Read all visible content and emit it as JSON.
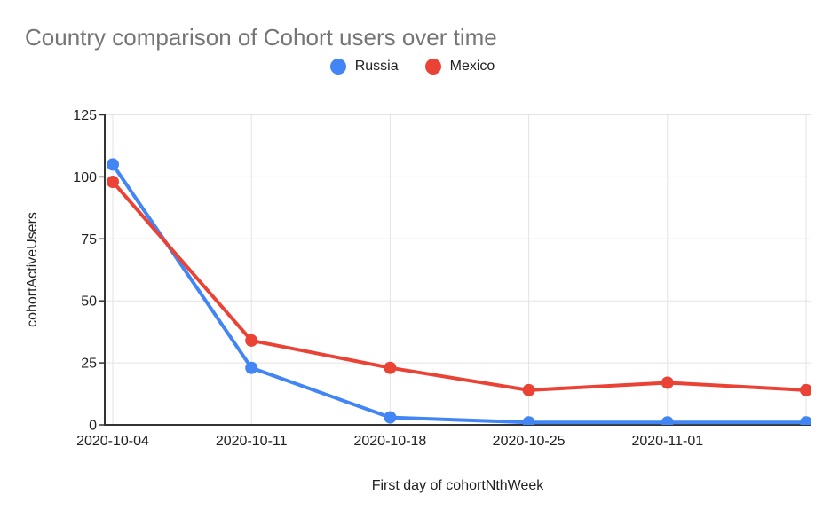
{
  "chart_data": {
    "type": "line",
    "title": "Country comparison of Cohort users over time",
    "xlabel": "First day of cohortNthWeek",
    "ylabel": "cohortActiveUsers",
    "categories": [
      "2020-10-04",
      "2020-10-11",
      "2020-10-18",
      "2020-10-25",
      "2020-11-01",
      ""
    ],
    "series": [
      {
        "name": "Russia",
        "color": "#4285F4",
        "values": [
          105,
          23,
          3,
          1,
          1,
          1
        ]
      },
      {
        "name": "Mexico",
        "color": "#EA4335",
        "values": [
          98,
          34,
          23,
          14,
          17,
          14
        ]
      }
    ],
    "ylim": [
      0,
      125
    ],
    "y_ticks": [
      0,
      25,
      50,
      75,
      100,
      125
    ],
    "grid": true,
    "legend_position": "top",
    "point_marker": "circle"
  },
  "colors": {
    "title_text": "#757575",
    "axis_text": "#212121",
    "axis_line": "#333333",
    "gridline": "#e3e3e3",
    "background": "#ffffff"
  }
}
